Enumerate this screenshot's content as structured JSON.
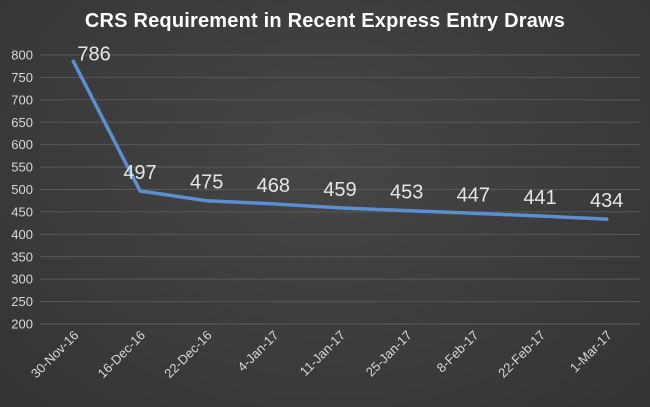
{
  "chart_data": {
    "type": "line",
    "title": "CRS Requirement in Recent Express Entry Draws",
    "xlabel": "",
    "ylabel": "",
    "categories": [
      "30-Nov-16",
      "16-Dec-16",
      "22-Dec-16",
      "4-Jan-17",
      "11-Jan-17",
      "25-Jan-17",
      "8-Feb-17",
      "22-Feb-17",
      "1-Mar-17"
    ],
    "series": [
      {
        "values": [
          786,
          497,
          475,
          468,
          459,
          453,
          447,
          441,
          434
        ]
      }
    ],
    "ylim": [
      200,
      800
    ],
    "yticks": [
      200,
      250,
      300,
      350,
      400,
      450,
      500,
      550,
      600,
      650,
      700,
      750,
      800
    ],
    "grid": true,
    "data_labels": true,
    "colors": {
      "background": "#3a3a3a",
      "line": "#5b8fcf",
      "grid": "#5a5a5a",
      "text": "#d8d8d8"
    }
  }
}
